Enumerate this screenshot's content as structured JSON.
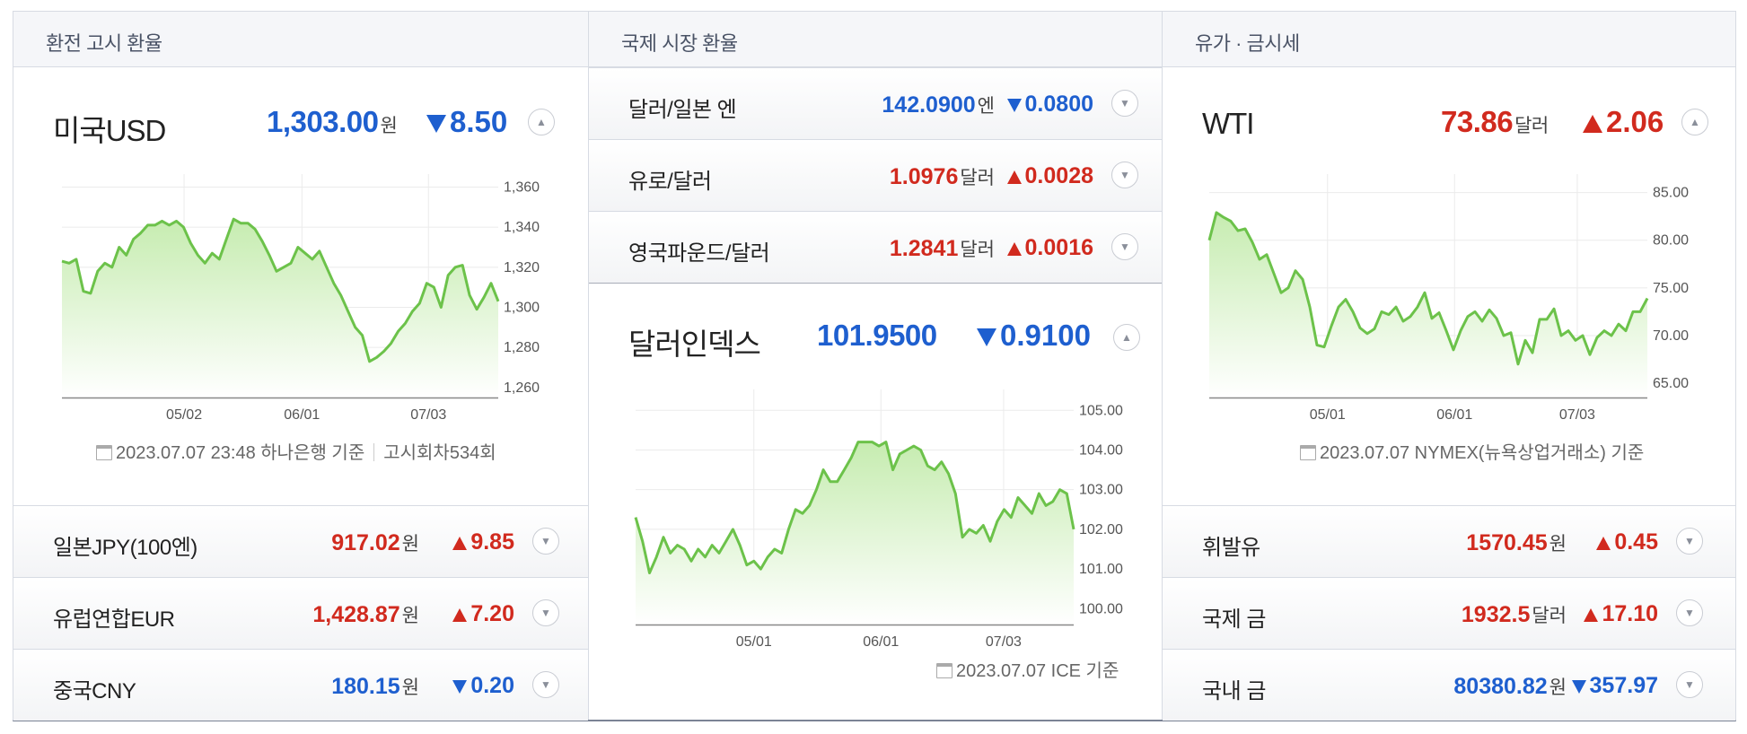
{
  "sections": {
    "exchange": {
      "title": "환전 고시 환율"
    },
    "intl": {
      "title": "국제 시장 환율"
    },
    "oil": {
      "title": "유가 · 금시세"
    }
  },
  "usd": {
    "name": "미국USD",
    "price": "1,303.00",
    "unit": "원",
    "change": "8.50",
    "direction": "down",
    "basis_date": "2023.07.07 23:48",
    "basis_bank": "하나은행 기준",
    "basis_round": "고시회차534회"
  },
  "exchange_rows": [
    {
      "name": "일본JPY(100엔)",
      "price": "917.02",
      "unit": "원",
      "change": "9.85",
      "direction": "up"
    },
    {
      "name": "유럽연합EUR",
      "price": "1,428.87",
      "unit": "원",
      "change": "7.20",
      "direction": "up"
    },
    {
      "name": "중국CNY",
      "price": "180.15",
      "unit": "원",
      "change": "0.20",
      "direction": "down"
    }
  ],
  "intl_rows": [
    {
      "name": "달러/일본 엔",
      "price": "142.0900",
      "unit": "엔",
      "change": "0.0800",
      "direction": "down"
    },
    {
      "name": "유로/달러",
      "price": "1.0976",
      "unit": "달러",
      "change": "0.0028",
      "direction": "up"
    },
    {
      "name": "영국파운드/달러",
      "price": "1.2841",
      "unit": "달러",
      "change": "0.0016",
      "direction": "up"
    }
  ],
  "dxy": {
    "name": "달러인덱스",
    "price": "101.9500",
    "change": "0.9100",
    "direction": "down",
    "basis": "2023.07.07 ICE 기준"
  },
  "wti": {
    "name": "WTI",
    "price": "73.86",
    "unit": "달러",
    "change": "2.06",
    "direction": "up",
    "basis": "2023.07.07 NYMEX(뉴욕상업거래소) 기준"
  },
  "oil_rows": [
    {
      "name": "휘발유",
      "price": "1570.45",
      "unit": "원",
      "change": "0.45",
      "direction": "up"
    },
    {
      "name": "국제 금",
      "price": "1932.5",
      "unit": "달러",
      "change": "17.10",
      "direction": "up"
    },
    {
      "name": "국내 금",
      "price": "80380.82",
      "unit": "원",
      "change": "357.97",
      "direction": "down"
    }
  ],
  "colors": {
    "up": "#d12a1e",
    "down": "#1e5fcf",
    "line": "#6cc24a",
    "fill_top": "#c6ecb0"
  },
  "chart_data": [
    {
      "type": "area",
      "series": [
        {
          "values": [
            1323,
            1322,
            1324,
            1308,
            1307,
            1318,
            1322,
            1320,
            1330,
            1326,
            1334,
            1337,
            1341,
            1341,
            1343,
            1341,
            1343,
            1340,
            1332,
            1326,
            1322,
            1327,
            1324,
            1334,
            1344,
            1342,
            1342,
            1339,
            1333,
            1326,
            1318,
            1320,
            1322,
            1330,
            1327,
            1324,
            1328,
            1320,
            1312,
            1306,
            1298,
            1290,
            1286,
            1273,
            1275,
            1278,
            1282,
            1288,
            1292,
            1298,
            1302,
            1312,
            1310,
            1300,
            1316,
            1320,
            1321,
            1306,
            1299,
            1305,
            1312,
            1303
          ]
        }
      ],
      "xticks": [
        "05/02",
        "06/01",
        "07/03"
      ],
      "yticks": [
        1260,
        1280,
        1300,
        1320,
        1340,
        1360
      ],
      "ylim": [
        1255,
        1362
      ]
    },
    {
      "type": "area",
      "series": [
        {
          "values": [
            102.3,
            101.7,
            100.9,
            101.3,
            101.8,
            101.4,
            101.6,
            101.5,
            101.2,
            101.5,
            101.3,
            101.6,
            101.4,
            101.7,
            102.0,
            101.6,
            101.1,
            101.2,
            101.0,
            101.3,
            101.5,
            101.4,
            102.0,
            102.5,
            102.4,
            102.6,
            103.0,
            103.5,
            103.2,
            103.2,
            103.5,
            103.8,
            104.2,
            104.2,
            104.2,
            104.1,
            104.2,
            103.5,
            103.9,
            104.0,
            104.1,
            104.0,
            103.6,
            103.5,
            103.7,
            103.4,
            102.9,
            101.8,
            102.0,
            101.9,
            102.1,
            101.7,
            102.2,
            102.5,
            102.3,
            102.8,
            102.6,
            102.4,
            102.9,
            102.6,
            102.7,
            103.0,
            102.9,
            102.0
          ]
        }
      ],
      "xticks": [
        "05/01",
        "06/01",
        "07/03"
      ],
      "yticks": [
        100,
        101,
        102,
        103,
        104,
        105
      ],
      "ylim": [
        99.6,
        105.3
      ]
    },
    {
      "type": "area",
      "series": [
        {
          "values": [
            80.0,
            82.9,
            82.4,
            82.0,
            81.0,
            81.2,
            79.8,
            78.0,
            78.5,
            76.5,
            74.5,
            75.0,
            76.8,
            75.9,
            73.0,
            69.0,
            68.8,
            71.0,
            73.0,
            73.8,
            72.5,
            70.8,
            70.2,
            70.7,
            72.5,
            72.2,
            73.0,
            71.5,
            72.0,
            73.0,
            74.5,
            71.8,
            72.4,
            70.5,
            68.5,
            70.5,
            72.0,
            72.5,
            71.5,
            72.7,
            71.8,
            70.0,
            70.3,
            67.0,
            69.5,
            68.2,
            71.7,
            71.7,
            72.8,
            70.0,
            70.5,
            69.5,
            70.0,
            68.0,
            69.8,
            70.5,
            70.0,
            71.2,
            70.5,
            72.5,
            72.5,
            73.9
          ]
        }
      ],
      "xticks": [
        "05/01",
        "06/01",
        "07/03"
      ],
      "yticks": [
        65,
        70,
        75,
        80,
        85
      ],
      "ylim": [
        63.5,
        86
      ]
    }
  ]
}
